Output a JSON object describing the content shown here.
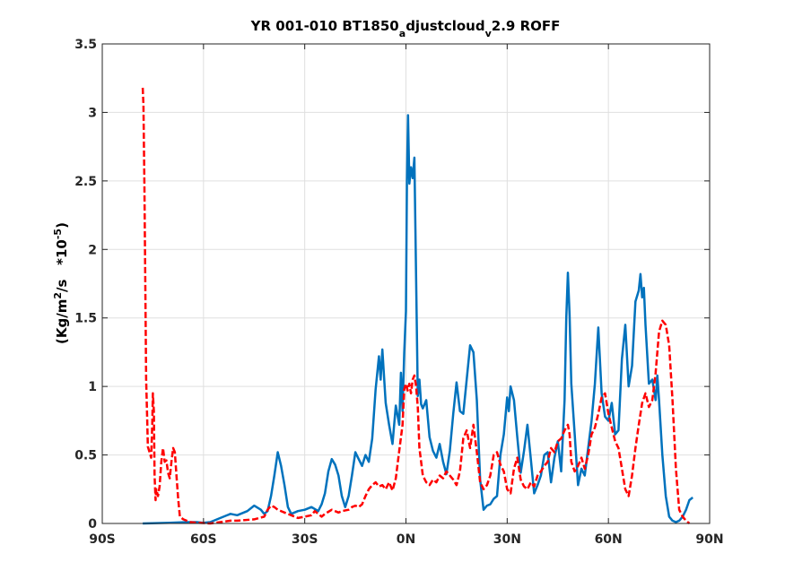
{
  "chart_data": {
    "type": "line",
    "title": {
      "p1": "YR 001-010 BT1850",
      "s1": "a",
      "p2": "djustcloud",
      "s2": "v",
      "p3": "2.9 ROFF"
    },
    "ylabel": {
      "p1": "(Kg/m",
      "sup1": "2",
      "p2": "/s   *10",
      "sup2": "-5",
      "p3": ")"
    },
    "xlabel": "",
    "xlim": [
      -90,
      90
    ],
    "ylim": [
      0,
      3.5
    ],
    "x_ticks": [
      -90,
      -60,
      -30,
      0,
      30,
      60,
      90
    ],
    "x_tick_labels": [
      "90S",
      "60S",
      "30S",
      "0N",
      "30N",
      "60N",
      "90N"
    ],
    "y_ticks": [
      0,
      0.5,
      1,
      1.5,
      2,
      2.5,
      3,
      3.5
    ],
    "y_tick_labels": [
      "0",
      "0.5",
      "1",
      "1.5",
      "2",
      "2.5",
      "3",
      "3.5"
    ],
    "grid": true,
    "series": [
      {
        "color": "#0072bd",
        "style": "solid",
        "points": [
          [
            -78,
            0.0
          ],
          [
            -70,
            0.005
          ],
          [
            -65,
            0.01
          ],
          [
            -62,
            0.01
          ],
          [
            -60,
            0.005
          ],
          [
            -58,
            0.01
          ],
          [
            -55,
            0.04
          ],
          [
            -52,
            0.07
          ],
          [
            -50,
            0.06
          ],
          [
            -47,
            0.09
          ],
          [
            -45,
            0.13
          ],
          [
            -43,
            0.1
          ],
          [
            -42,
            0.07
          ],
          [
            -41,
            0.09
          ],
          [
            -40,
            0.2
          ],
          [
            -39,
            0.35
          ],
          [
            -38,
            0.52
          ],
          [
            -37,
            0.42
          ],
          [
            -36,
            0.28
          ],
          [
            -35,
            0.12
          ],
          [
            -34,
            0.07
          ],
          [
            -32,
            0.09
          ],
          [
            -30,
            0.1
          ],
          [
            -28,
            0.12
          ],
          [
            -26,
            0.09
          ],
          [
            -25,
            0.14
          ],
          [
            -24,
            0.22
          ],
          [
            -23,
            0.38
          ],
          [
            -22,
            0.47
          ],
          [
            -21,
            0.43
          ],
          [
            -20,
            0.35
          ],
          [
            -19,
            0.2
          ],
          [
            -18,
            0.12
          ],
          [
            -17,
            0.2
          ],
          [
            -16,
            0.35
          ],
          [
            -15,
            0.52
          ],
          [
            -14,
            0.47
          ],
          [
            -13,
            0.42
          ],
          [
            -12,
            0.5
          ],
          [
            -11,
            0.45
          ],
          [
            -10,
            0.62
          ],
          [
            -9,
            0.98
          ],
          [
            -8,
            1.22
          ],
          [
            -7.5,
            1.05
          ],
          [
            -7,
            1.27
          ],
          [
            -6,
            0.88
          ],
          [
            -5,
            0.72
          ],
          [
            -4,
            0.58
          ],
          [
            -3,
            0.86
          ],
          [
            -2,
            0.72
          ],
          [
            -1.5,
            1.1
          ],
          [
            -1,
            0.82
          ],
          [
            -0.5,
            1.25
          ],
          [
            0,
            1.55
          ],
          [
            0.3,
            2.5
          ],
          [
            0.6,
            2.98
          ],
          [
            1,
            2.48
          ],
          [
            1.5,
            2.6
          ],
          [
            2,
            2.52
          ],
          [
            2.5,
            2.67
          ],
          [
            3,
            1.8
          ],
          [
            3.5,
            0.93
          ],
          [
            4,
            1.05
          ],
          [
            4.5,
            0.87
          ],
          [
            5,
            0.84
          ],
          [
            6,
            0.9
          ],
          [
            7,
            0.63
          ],
          [
            8,
            0.53
          ],
          [
            9,
            0.48
          ],
          [
            10,
            0.58
          ],
          [
            11,
            0.45
          ],
          [
            12,
            0.36
          ],
          [
            13,
            0.53
          ],
          [
            14,
            0.8
          ],
          [
            15,
            1.03
          ],
          [
            16,
            0.82
          ],
          [
            17,
            0.8
          ],
          [
            18,
            1.05
          ],
          [
            19,
            1.3
          ],
          [
            20,
            1.25
          ],
          [
            21,
            0.9
          ],
          [
            22,
            0.32
          ],
          [
            23,
            0.1
          ],
          [
            24,
            0.13
          ],
          [
            25,
            0.14
          ],
          [
            26,
            0.18
          ],
          [
            27,
            0.2
          ],
          [
            28,
            0.5
          ],
          [
            29,
            0.65
          ],
          [
            30,
            0.92
          ],
          [
            30.5,
            0.82
          ],
          [
            31,
            1.0
          ],
          [
            32,
            0.9
          ],
          [
            33,
            0.63
          ],
          [
            34,
            0.37
          ],
          [
            35,
            0.53
          ],
          [
            36,
            0.72
          ],
          [
            37,
            0.47
          ],
          [
            38,
            0.22
          ],
          [
            39,
            0.28
          ],
          [
            40,
            0.35
          ],
          [
            41,
            0.5
          ],
          [
            42,
            0.52
          ],
          [
            43,
            0.3
          ],
          [
            44,
            0.48
          ],
          [
            45,
            0.6
          ],
          [
            46,
            0.38
          ],
          [
            47,
            0.9
          ],
          [
            47.5,
            1.5
          ],
          [
            48,
            1.83
          ],
          [
            48.5,
            1.52
          ],
          [
            49,
            1.02
          ],
          [
            50,
            0.65
          ],
          [
            51,
            0.28
          ],
          [
            52,
            0.4
          ],
          [
            53,
            0.35
          ],
          [
            54,
            0.55
          ],
          [
            55,
            0.75
          ],
          [
            56,
            1.02
          ],
          [
            57,
            1.43
          ],
          [
            58,
            0.95
          ],
          [
            59,
            0.78
          ],
          [
            60,
            0.75
          ],
          [
            61,
            0.88
          ],
          [
            62,
            0.65
          ],
          [
            63,
            0.68
          ],
          [
            64,
            1.2
          ],
          [
            65,
            1.45
          ],
          [
            66,
            1.0
          ],
          [
            67,
            1.15
          ],
          [
            68,
            1.62
          ],
          [
            69,
            1.7
          ],
          [
            69.5,
            1.82
          ],
          [
            70,
            1.65
          ],
          [
            70.5,
            1.72
          ],
          [
            71,
            1.45
          ],
          [
            72,
            1.02
          ],
          [
            73,
            1.05
          ],
          [
            74,
            0.9
          ],
          [
            74.5,
            1.08
          ],
          [
            75,
            0.9
          ],
          [
            76,
            0.5
          ],
          [
            77,
            0.2
          ],
          [
            78,
            0.05
          ],
          [
            79,
            0.02
          ],
          [
            80,
            0.01
          ],
          [
            81,
            0.02
          ],
          [
            82,
            0.05
          ],
          [
            83,
            0.1
          ],
          [
            84,
            0.17
          ],
          [
            85,
            0.19
          ]
        ]
      },
      {
        "color": "#ff0000",
        "style": "dashed",
        "points": [
          [
            -78,
            3.18
          ],
          [
            -77.8,
            3.05
          ],
          [
            -77.5,
            2.45
          ],
          [
            -77.2,
            1.65
          ],
          [
            -77,
            1.05
          ],
          [
            -76.7,
            0.78
          ],
          [
            -76.5,
            0.56
          ],
          [
            -76,
            0.52
          ],
          [
            -75.5,
            0.48
          ],
          [
            -75.2,
            0.72
          ],
          [
            -75,
            0.95
          ],
          [
            -74.7,
            0.82
          ],
          [
            -74.5,
            0.35
          ],
          [
            -74.2,
            0.17
          ],
          [
            -74,
            0.25
          ],
          [
            -73.5,
            0.2
          ],
          [
            -73,
            0.27
          ],
          [
            -72.5,
            0.45
          ],
          [
            -72,
            0.55
          ],
          [
            -71.5,
            0.45
          ],
          [
            -71,
            0.46
          ],
          [
            -70.5,
            0.37
          ],
          [
            -70,
            0.33
          ],
          [
            -69.5,
            0.45
          ],
          [
            -69,
            0.55
          ],
          [
            -68.5,
            0.52
          ],
          [
            -68,
            0.35
          ],
          [
            -67.5,
            0.18
          ],
          [
            -67,
            0.05
          ],
          [
            -66,
            0.03
          ],
          [
            -65,
            0.02
          ],
          [
            -64,
            0.01
          ],
          [
            -62,
            0.005
          ],
          [
            -58,
            0.0
          ],
          [
            -55,
            0.01
          ],
          [
            -52,
            0.02
          ],
          [
            -50,
            0.02
          ],
          [
            -45,
            0.03
          ],
          [
            -42,
            0.05
          ],
          [
            -41,
            0.1
          ],
          [
            -40,
            0.13
          ],
          [
            -39,
            0.12
          ],
          [
            -38,
            0.1
          ],
          [
            -36,
            0.08
          ],
          [
            -34,
            0.06
          ],
          [
            -32,
            0.04
          ],
          [
            -30,
            0.05
          ],
          [
            -28,
            0.06
          ],
          [
            -27,
            0.09
          ],
          [
            -26,
            0.07
          ],
          [
            -25,
            0.05
          ],
          [
            -24,
            0.07
          ],
          [
            -22,
            0.1
          ],
          [
            -20,
            0.08
          ],
          [
            -19,
            0.09
          ],
          [
            -17,
            0.1
          ],
          [
            -16,
            0.12
          ],
          [
            -15,
            0.13
          ],
          [
            -14,
            0.12
          ],
          [
            -13,
            0.14
          ],
          [
            -12,
            0.2
          ],
          [
            -11,
            0.25
          ],
          [
            -10,
            0.28
          ],
          [
            -9,
            0.3
          ],
          [
            -8,
            0.27
          ],
          [
            -7,
            0.28
          ],
          [
            -6,
            0.25
          ],
          [
            -5,
            0.3
          ],
          [
            -4,
            0.24
          ],
          [
            -3,
            0.33
          ],
          [
            -2,
            0.53
          ],
          [
            -1,
            0.72
          ],
          [
            -0.5,
            0.98
          ],
          [
            0,
            1.02
          ],
          [
            0.5,
            0.97
          ],
          [
            1,
            1.02
          ],
          [
            1.5,
            0.95
          ],
          [
            2,
            1.05
          ],
          [
            2.5,
            1.08
          ],
          [
            3,
            1.0
          ],
          [
            3.5,
            0.85
          ],
          [
            4,
            0.55
          ],
          [
            5,
            0.35
          ],
          [
            6,
            0.3
          ],
          [
            7,
            0.28
          ],
          [
            8,
            0.32
          ],
          [
            9,
            0.3
          ],
          [
            10,
            0.35
          ],
          [
            11,
            0.33
          ],
          [
            12,
            0.38
          ],
          [
            13,
            0.35
          ],
          [
            14,
            0.32
          ],
          [
            15,
            0.28
          ],
          [
            16,
            0.38
          ],
          [
            17,
            0.62
          ],
          [
            18,
            0.68
          ],
          [
            19,
            0.55
          ],
          [
            20,
            0.72
          ],
          [
            21,
            0.52
          ],
          [
            22,
            0.3
          ],
          [
            23,
            0.25
          ],
          [
            24,
            0.28
          ],
          [
            25,
            0.35
          ],
          [
            26,
            0.5
          ],
          [
            27,
            0.52
          ],
          [
            28,
            0.43
          ],
          [
            29,
            0.38
          ],
          [
            30,
            0.25
          ],
          [
            31,
            0.22
          ],
          [
            32,
            0.4
          ],
          [
            33,
            0.48
          ],
          [
            34,
            0.32
          ],
          [
            35,
            0.27
          ],
          [
            36,
            0.25
          ],
          [
            37,
            0.3
          ],
          [
            38,
            0.27
          ],
          [
            39,
            0.35
          ],
          [
            40,
            0.38
          ],
          [
            41,
            0.42
          ],
          [
            42,
            0.45
          ],
          [
            43,
            0.55
          ],
          [
            44,
            0.52
          ],
          [
            45,
            0.6
          ],
          [
            46,
            0.62
          ],
          [
            47,
            0.68
          ],
          [
            48,
            0.72
          ],
          [
            48.5,
            0.65
          ],
          [
            49,
            0.45
          ],
          [
            50,
            0.38
          ],
          [
            51,
            0.42
          ],
          [
            52,
            0.48
          ],
          [
            53,
            0.4
          ],
          [
            54,
            0.5
          ],
          [
            55,
            0.65
          ],
          [
            56,
            0.7
          ],
          [
            57,
            0.8
          ],
          [
            58,
            0.92
          ],
          [
            59,
            0.95
          ],
          [
            60,
            0.8
          ],
          [
            61,
            0.7
          ],
          [
            62,
            0.6
          ],
          [
            63,
            0.55
          ],
          [
            64,
            0.4
          ],
          [
            65,
            0.25
          ],
          [
            66,
            0.2
          ],
          [
            67,
            0.35
          ],
          [
            68,
            0.55
          ],
          [
            69,
            0.72
          ],
          [
            70,
            0.88
          ],
          [
            71,
            0.95
          ],
          [
            72,
            0.85
          ],
          [
            73,
            0.9
          ],
          [
            74,
            1.1
          ],
          [
            75,
            1.4
          ],
          [
            76,
            1.48
          ],
          [
            77,
            1.45
          ],
          [
            78,
            1.3
          ],
          [
            79,
            0.9
          ],
          [
            80,
            0.4
          ],
          [
            81,
            0.1
          ],
          [
            82,
            0.05
          ],
          [
            83,
            0.02
          ],
          [
            84,
            0.0
          ]
        ]
      }
    ]
  }
}
